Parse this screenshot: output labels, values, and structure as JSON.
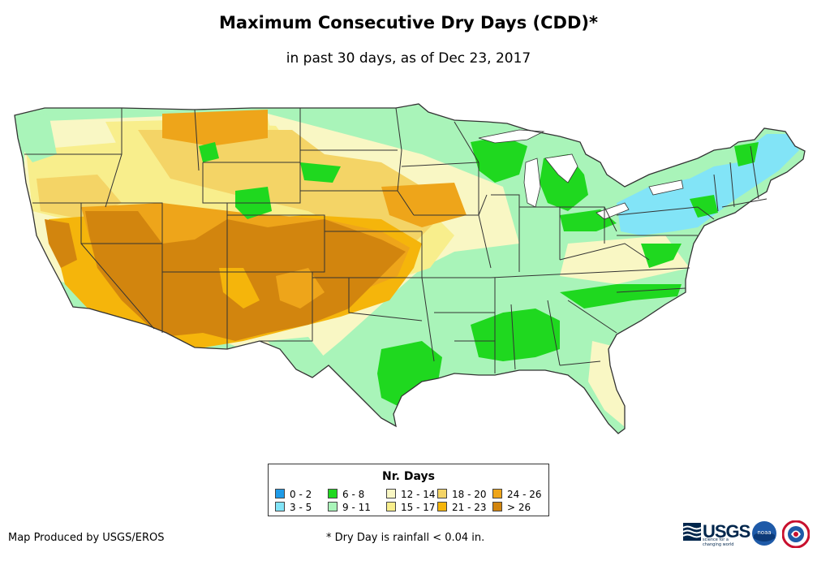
{
  "title": "Maximum Consecutive Dry Days (CDD)*",
  "subtitle": "in past 30 days, as of Dec 23, 2017",
  "legend": {
    "title": "Nr. Days",
    "items": [
      {
        "label": "0 - 2",
        "color": "#1e9be8"
      },
      {
        "label": "3 - 5",
        "color": "#82e4f7"
      },
      {
        "label": "6 - 8",
        "color": "#1fd81f"
      },
      {
        "label": "9 - 11",
        "color": "#a9f4b9"
      },
      {
        "label": "12 - 14",
        "color": "#f9f7c4"
      },
      {
        "label": "15 - 17",
        "color": "#f8ee8c"
      },
      {
        "label": "18 - 20",
        "color": "#f4d466"
      },
      {
        "label": "21 - 23",
        "color": "#f5b50b"
      },
      {
        "label": "24 - 26",
        "color": "#eea51a"
      },
      {
        "label": "> 26",
        "color": "#d2850e"
      }
    ]
  },
  "credit": "Map Produced by USGS/EROS",
  "footnote": "* Dry Day is rainfall < 0.04 in.",
  "logos": {
    "usgs_text": "USGS",
    "usgs_tagline": "science for a changing world",
    "noaa_text": "noaa"
  }
}
